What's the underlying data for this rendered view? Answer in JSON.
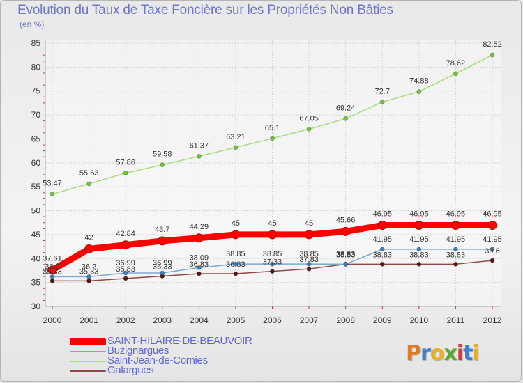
{
  "title": "Evolution du Taux de Taxe Foncière sur les Propriétés Non Bâties",
  "unit_label": "(en %)",
  "logo": {
    "text": "Proxiti",
    "colors": [
      "#e07b20",
      "#3f7fd0",
      "#e8b020",
      "#5aa832",
      "#d43d3d",
      "#3f7fd0",
      "#e8b020"
    ]
  },
  "chart_data": {
    "type": "line",
    "title": "Evolution du Taux de Taxe Foncière sur les Propriétés Non Bâties",
    "ylabel": "(en %)",
    "xlabel": "",
    "x": [
      "2000",
      "2001",
      "2002",
      "2003",
      "2004",
      "2005",
      "2006",
      "2007",
      "2008",
      "2009",
      "2010",
      "2011",
      "2012"
    ],
    "ylim": [
      30,
      85
    ],
    "yticks": [
      "30",
      "35",
      "40",
      "45",
      "50",
      "55",
      "60",
      "65",
      "70",
      "75",
      "80",
      "85"
    ],
    "grid": true,
    "legend_position": "bottom-left",
    "series": [
      {
        "name": "SAINT-HILAIRE-DE-BEAUVOIR",
        "color": "#ff0000",
        "marker": "#dd0000",
        "width": 9,
        "values": [
          37.61,
          42,
          42.84,
          43.7,
          44.29,
          45,
          45,
          45,
          45.66,
          46.95,
          46.95,
          46.95,
          46.95
        ],
        "labels": [
          "37.61",
          "42",
          "42.84",
          "43.7",
          "44.29",
          "45",
          "45",
          "45",
          "45.66",
          "46.95",
          "46.95",
          "46.95",
          "46.95"
        ]
      },
      {
        "name": "Buzignargues",
        "color": "#7aa9d0",
        "marker": "#3d7fbd",
        "width": 1.5,
        "values": [
          36.2,
          36.2,
          36.99,
          36.99,
          38.09,
          38.85,
          38.85,
          38.85,
          38.83,
          41.95,
          41.95,
          41.95,
          41.95
        ],
        "labels": [
          "36.2",
          "36.2",
          "36.99",
          "36.99",
          "38.09",
          "38.85",
          "38.85",
          "38.85",
          "38.83",
          "41.95",
          "41.95",
          "41.95",
          "41.95"
        ]
      },
      {
        "name": "Saint-Jean-de-Cornies",
        "color": "#a8dc7c",
        "marker": "#72c33b",
        "width": 1.5,
        "values": [
          53.47,
          55.63,
          57.86,
          59.58,
          61.37,
          63.21,
          65.1,
          67.05,
          69.24,
          72.7,
          74.88,
          78.62,
          82.52
        ],
        "labels": [
          "53.47",
          "55.63",
          "57.86",
          "59.58",
          "61.37",
          "63.21",
          "65.1",
          "67.05",
          "69.24",
          "72.7",
          "74.88",
          "78.62",
          "82.52"
        ]
      },
      {
        "name": "Galargues",
        "color": "#8e4848",
        "marker": "#5c1414",
        "width": 1.5,
        "values": [
          35.33,
          35.33,
          35.83,
          36.33,
          36.83,
          36.83,
          37.33,
          37.83,
          38.83,
          38.83,
          38.83,
          38.83,
          39.6
        ],
        "labels": [
          "35.33",
          "35.33",
          "35.83",
          "36.33",
          "36.83",
          "36.83",
          "37.33",
          "37.83",
          "38.83",
          "38.83",
          "38.83",
          "38.83",
          "39.6"
        ]
      }
    ]
  }
}
